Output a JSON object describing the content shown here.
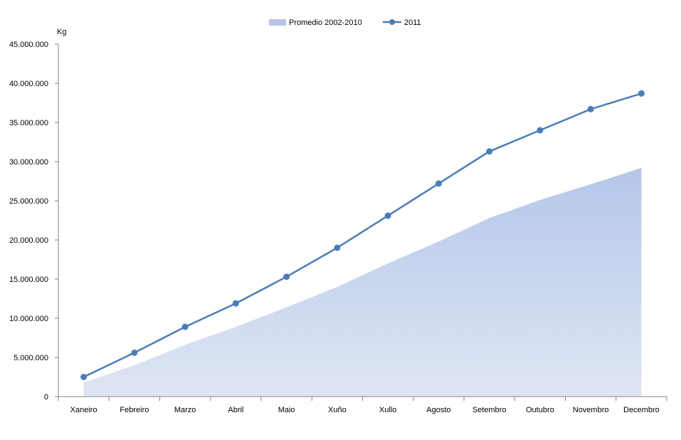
{
  "chart_data": {
    "type": "line",
    "ylabel": "Kg",
    "ylim": [
      0,
      45000000
    ],
    "yticks": [
      0,
      5000000,
      10000000,
      15000000,
      20000000,
      25000000,
      30000000,
      35000000,
      40000000,
      45000000
    ],
    "ytick_labels": [
      "0",
      "5.000.000",
      "10.000.000",
      "15.000.000",
      "20.000.000",
      "25.000.000",
      "30.000.000",
      "35.000.000",
      "40.000.000",
      "45.000.000"
    ],
    "categories": [
      "Xaneiro",
      "Febreiro",
      "Marzo",
      "Abril",
      "Maio",
      "Xuño",
      "Xullo",
      "Agosto",
      "Setembro",
      "Outubro",
      "Novembro",
      "Decembro"
    ],
    "grid": false,
    "legend_position": "top-center",
    "series": [
      {
        "name": "Promedio 2002-2010",
        "kind": "area",
        "color": "#b4c7e7",
        "values": [
          1800000,
          4000000,
          6600000,
          8900000,
          11400000,
          14000000,
          17000000,
          19800000,
          22800000,
          25100000,
          27100000,
          29200000
        ]
      },
      {
        "name": "2011",
        "kind": "line",
        "color": "#4a7ebb",
        "values": [
          2500000,
          5600000,
          8900000,
          11900000,
          15300000,
          19000000,
          23100000,
          27200000,
          31300000,
          34000000,
          36700000,
          38700000
        ]
      }
    ]
  }
}
